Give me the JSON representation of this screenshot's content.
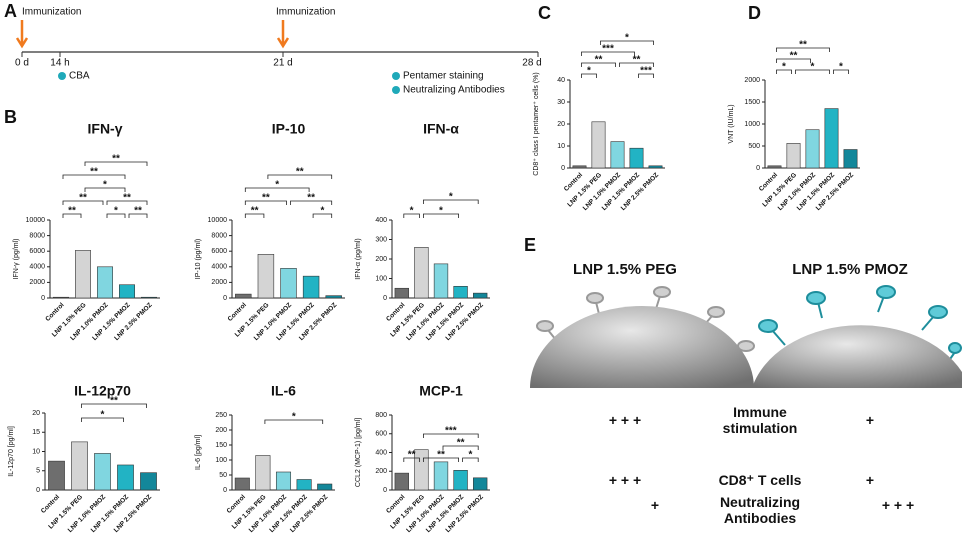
{
  "panel_labels": [
    "A",
    "B",
    "C",
    "D",
    "E"
  ],
  "timeline": {
    "immunization": [
      "Immunization",
      "Immunization"
    ],
    "ticks": [
      "0 d",
      "14 h",
      "21 d",
      "28 d"
    ],
    "readouts": [
      "CBA",
      "Pentamer staining",
      "Neutralizing Antibodies"
    ]
  },
  "chart_data": [
    {
      "type": "bar",
      "title": "IFN-γ",
      "ylabel": "IFN-γ (pg/ml)",
      "categories": [
        "Control",
        "LNP 1.5% PEG",
        "LNP 1.0% PMOZ",
        "LNP 1.5% PMOZ",
        "LNP 2.5% PMOZ"
      ],
      "values": [
        100,
        6100,
        4000,
        1700,
        100
      ],
      "colors": [
        "#6e6e6e",
        "#d4d4d4",
        "#80d6e0",
        "#22b3c4",
        "#13879a"
      ],
      "ylim": [
        0,
        10000
      ],
      "yticks": [
        0,
        2000,
        4000,
        6000,
        8000,
        10000
      ],
      "brackets": [
        {
          "from": 0,
          "to": 1,
          "label": "**"
        },
        {
          "from": 2,
          "to": 3,
          "label": "*"
        },
        {
          "from": 3,
          "to": 4,
          "label": "**"
        },
        {
          "from": 0,
          "to": 2,
          "label": "**"
        },
        {
          "from": 2,
          "to": 4,
          "label": "**"
        },
        {
          "from": 1,
          "to": 3,
          "label": "*"
        },
        {
          "from": 0,
          "to": 3,
          "label": "**"
        },
        {
          "from": 1,
          "to": 4,
          "label": "**"
        }
      ]
    },
    {
      "type": "bar",
      "title": "IP-10",
      "ylabel": "IP-10 (pg/ml)",
      "categories": [
        "Control",
        "LNP 1.5% PEG",
        "LNP 1.0% PMOZ",
        "LNP 1.5% PMOZ",
        "LNP 2.5% PMOZ"
      ],
      "values": [
        500,
        5600,
        3800,
        2800,
        300
      ],
      "colors": [
        "#6e6e6e",
        "#d4d4d4",
        "#80d6e0",
        "#22b3c4",
        "#13879a"
      ],
      "ylim": [
        0,
        10000
      ],
      "yticks": [
        0,
        2000,
        4000,
        6000,
        8000,
        10000
      ],
      "brackets": [
        {
          "from": 0,
          "to": 1,
          "label": "**"
        },
        {
          "from": 3,
          "to": 4,
          "label": "*"
        },
        {
          "from": 0,
          "to": 2,
          "label": "**"
        },
        {
          "from": 2,
          "to": 4,
          "label": "**"
        },
        {
          "from": 0,
          "to": 3,
          "label": "*"
        },
        {
          "from": 1,
          "to": 4,
          "label": "**"
        }
      ]
    },
    {
      "type": "bar",
      "title": "IFN-α",
      "ylabel": "IFN-α (pg/ml)",
      "categories": [
        "Control",
        "LNP 1.5% PEG",
        "LNP 1.0% PMOZ",
        "LNP 1.5% PMOZ",
        "LNP 2.5% PMOZ"
      ],
      "values": [
        50,
        260,
        175,
        60,
        25
      ],
      "colors": [
        "#6e6e6e",
        "#d4d4d4",
        "#80d6e0",
        "#22b3c4",
        "#13879a"
      ],
      "ylim": [
        0,
        400
      ],
      "yticks": [
        0,
        100,
        200,
        300,
        400
      ],
      "brackets": [
        {
          "from": 0,
          "to": 1,
          "label": "*"
        },
        {
          "from": 1,
          "to": 3,
          "label": "*"
        },
        {
          "from": 1,
          "to": 4,
          "label": "*"
        }
      ]
    },
    {
      "type": "bar",
      "title": "IL-12p70",
      "ylabel": "IL-12p70 [pg/ml]",
      "categories": [
        "Control",
        "LNP 1.5% PEG",
        "LNP 1.0% PMOZ",
        "LNP 1.5% PMOZ",
        "LNP 2.5% PMOZ"
      ],
      "values": [
        7.5,
        12.5,
        9.5,
        6.5,
        4.5
      ],
      "colors": [
        "#6e6e6e",
        "#d4d4d4",
        "#80d6e0",
        "#22b3c4",
        "#13879a"
      ],
      "ylim": [
        0,
        20
      ],
      "yticks": [
        0,
        5,
        10,
        15,
        20
      ],
      "brackets": [
        {
          "from": 1,
          "to": 3,
          "label": "*"
        },
        {
          "from": 1,
          "to": 4,
          "label": "**"
        }
      ]
    },
    {
      "type": "bar",
      "title": "IL-6",
      "ylabel": "IL-6 [pg/ml]",
      "categories": [
        "Control",
        "LNP 1.5% PEG",
        "LNP 1.0% PMOZ",
        "LNP 1.5% PMOZ",
        "LNP 2.5% PMOZ"
      ],
      "values": [
        40,
        115,
        60,
        35,
        20
      ],
      "colors": [
        "#6e6e6e",
        "#d4d4d4",
        "#80d6e0",
        "#22b3c4",
        "#13879a"
      ],
      "ylim": [
        0,
        250
      ],
      "yticks": [
        0,
        50,
        100,
        150,
        200,
        250
      ],
      "brackets": [
        {
          "from": 1,
          "to": 4,
          "label": "*"
        }
      ]
    },
    {
      "type": "bar",
      "title": "MCP-1",
      "ylabel": "CCL2 (MCP-1) [pg/ml]",
      "categories": [
        "Control",
        "LNP 1.5% PEG",
        "LNP 1.0% PMOZ",
        "LNP 1.5% PMOZ",
        "LNP 2.5% PMOZ"
      ],
      "values": [
        180,
        430,
        300,
        210,
        130
      ],
      "colors": [
        "#6e6e6e",
        "#d4d4d4",
        "#80d6e0",
        "#22b3c4",
        "#13879a"
      ],
      "ylim": [
        0,
        800
      ],
      "yticks": [
        0,
        200,
        400,
        600,
        800
      ],
      "brackets": [
        {
          "from": 0,
          "to": 1,
          "label": "**"
        },
        {
          "from": 3,
          "to": 4,
          "label": "*"
        },
        {
          "from": 1,
          "to": 3,
          "label": "**"
        },
        {
          "from": 2,
          "to": 4,
          "label": "**"
        },
        {
          "from": 1,
          "to": 4,
          "label": "***"
        }
      ]
    },
    {
      "type": "bar",
      "ylabel": "CD8⁺ class I pentamer⁺ cells (%)",
      "categories": [
        "Control",
        "LNP 1.5% PEG",
        "LNP 1.0% PMOZ",
        "LNP 1.5% PMOZ",
        "LNP 2.5% PMOZ"
      ],
      "values": [
        1,
        21,
        12,
        9,
        1
      ],
      "colors": [
        "#6e6e6e",
        "#d4d4d4",
        "#80d6e0",
        "#22b3c4",
        "#13879a"
      ],
      "ylim": [
        0,
        40
      ],
      "yticks": [
        0,
        10,
        20,
        30,
        40
      ],
      "brackets": [
        {
          "from": 0,
          "to": 1,
          "label": "*"
        },
        {
          "from": 3,
          "to": 4,
          "label": "***"
        },
        {
          "from": 0,
          "to": 2,
          "label": "**"
        },
        {
          "from": 2,
          "to": 4,
          "label": "**"
        },
        {
          "from": 0,
          "to": 3,
          "label": "***"
        },
        {
          "from": 1,
          "to": 4,
          "label": "*"
        }
      ]
    },
    {
      "type": "bar",
      "ylabel": "VNT (IU/mL)",
      "categories": [
        "Control",
        "LNP 1.5% PEG",
        "LNP 1.0% PMOZ",
        "LNP 1.5% PMOZ",
        "LNP 2.5% PMOZ"
      ],
      "values": [
        50,
        560,
        870,
        1350,
        420
      ],
      "colors": [
        "#6e6e6e",
        "#d4d4d4",
        "#80d6e0",
        "#22b3c4",
        "#13879a"
      ],
      "ylim": [
        0,
        2000
      ],
      "yticks": [
        0,
        500,
        1000,
        1500,
        2000
      ],
      "brackets": [
        {
          "from": 0,
          "to": 1,
          "label": "*"
        },
        {
          "from": 3,
          "to": 4,
          "label": "*"
        },
        {
          "from": 1,
          "to": 3,
          "label": "*"
        },
        {
          "from": 0,
          "to": 2,
          "label": "**"
        },
        {
          "from": 0,
          "to": 3,
          "label": "**"
        }
      ]
    }
  ],
  "comparison": {
    "columns": [
      "LNP 1.5% PEG",
      "LNP 1.5% PMOZ"
    ],
    "rows": [
      {
        "label": "Immune stimulation",
        "left": "+ + +",
        "right": "+"
      },
      {
        "label": "CD8⁺ T cells",
        "left": "+ + +",
        "right": "+"
      },
      {
        "label": "Neutralizing Antibodies",
        "left": "+",
        "right": "+ + +"
      }
    ]
  }
}
